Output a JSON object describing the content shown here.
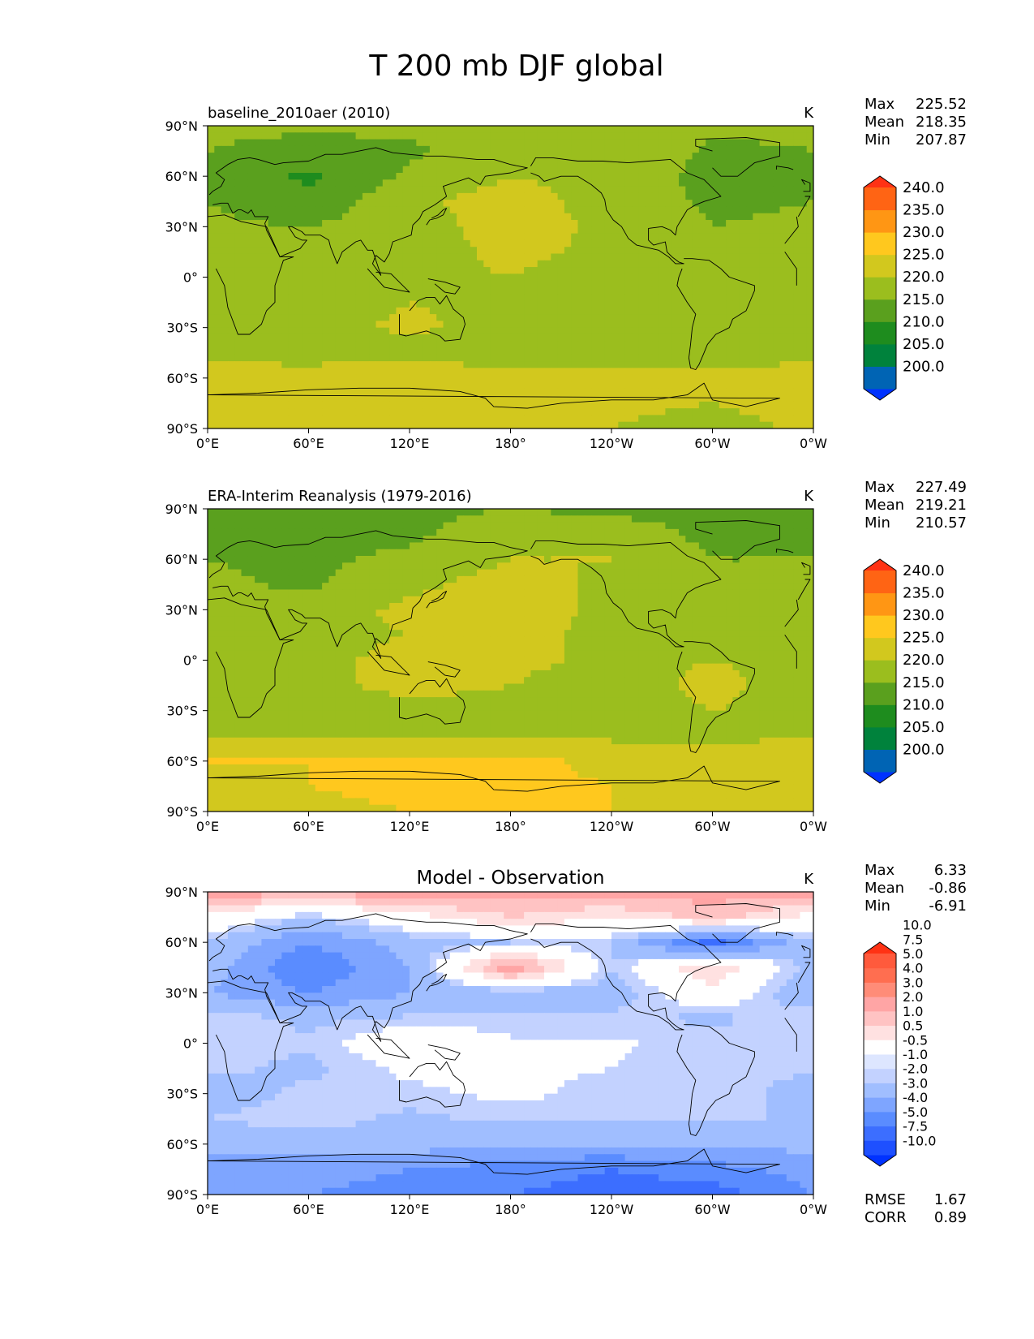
{
  "title": "T 200 mb DJF global",
  "colors": {
    "contour": [
      "#0032ff",
      "#0064b4",
      "#00823c",
      "#1e8c1e",
      "#5aa01e",
      "#9bbe1e",
      "#d2c81e",
      "#ffc81e",
      "#ff9614",
      "#ff6414",
      "#ff3214"
    ],
    "diff": [
      "#0032ff",
      "#1e50ff",
      "#3c6eff",
      "#5a8cff",
      "#7ea5ff",
      "#a0beff",
      "#c3d2ff",
      "#dde6ff",
      "#ffffff",
      "#ffe1e1",
      "#ffc3c3",
      "#ffa5a5",
      "#ff8c78",
      "#ff6e50",
      "#ff5a3c",
      "#ff3214"
    ]
  },
  "x_ticks": [
    "0°E",
    "60°E",
    "120°E",
    "180°",
    "120°W",
    "60°W",
    "0°W"
  ],
  "y_ticks": [
    "90°N",
    "60°N",
    "30°N",
    "0°",
    "30°S",
    "60°S",
    "90°S"
  ],
  "panels": [
    {
      "id": "test",
      "title_left": "baseline_2010aer (2010)",
      "title_center": "",
      "units": "K",
      "stats": [
        {
          "label": "Max",
          "value": "225.52"
        },
        {
          "label": "Mean",
          "value": "218.35"
        },
        {
          "label": "Min",
          "value": "207.87"
        }
      ],
      "colorbar_levels": [
        "200.0",
        "205.0",
        "210.0",
        "215.0",
        "220.0",
        "225.0",
        "230.0",
        "235.0",
        "240.0"
      ],
      "extra_stats": []
    },
    {
      "id": "ref",
      "title_left": "ERA-Interim Reanalysis (1979-2016)",
      "title_center": "",
      "units": "K",
      "stats": [
        {
          "label": "Max",
          "value": "227.49"
        },
        {
          "label": "Mean",
          "value": "219.21"
        },
        {
          "label": "Min",
          "value": "210.57"
        }
      ],
      "colorbar_levels": [
        "200.0",
        "205.0",
        "210.0",
        "215.0",
        "220.0",
        "225.0",
        "230.0",
        "235.0",
        "240.0"
      ],
      "extra_stats": []
    },
    {
      "id": "diff",
      "title_left": "",
      "title_center": "Model - Observation",
      "units": "K",
      "stats": [
        {
          "label": "Max",
          "value": "6.33"
        },
        {
          "label": "Mean",
          "value": "-0.86"
        },
        {
          "label": "Min",
          "value": "-6.91"
        }
      ],
      "colorbar_levels": [
        "-10.0",
        "-7.5",
        "-5.0",
        "-4.0",
        "-3.0",
        "-2.0",
        "-1.0",
        "-0.5",
        "0.5",
        "1.0",
        "2.0",
        "3.0",
        "4.0",
        "5.0",
        "7.5",
        "10.0"
      ],
      "extra_stats": [
        {
          "label": "RMSE",
          "value": "1.67"
        },
        {
          "label": "CORR",
          "value": "0.89"
        }
      ]
    }
  ],
  "chart_data": [
    {
      "type": "heatmap",
      "title": "baseline_2010aer (2010)",
      "units": "K",
      "x_range": [
        0,
        360
      ],
      "y_range": [
        -90,
        90
      ],
      "x_ticks": [
        "0°E",
        "60°E",
        "120°E",
        "180°",
        "120°W",
        "60°W",
        "0°W"
      ],
      "y_ticks": [
        "90°N",
        "60°N",
        "30°N",
        "0°",
        "30°S",
        "60°S",
        "90°S"
      ],
      "levels": [
        200,
        205,
        210,
        215,
        220,
        225,
        230,
        235,
        240
      ],
      "max": 225.52,
      "mean": 218.35,
      "min": 207.87,
      "field": {
        "lats": [
          -90,
          -75,
          -60,
          -45,
          -30,
          -15,
          0,
          15,
          30,
          45,
          60,
          75,
          90
        ],
        "lons": [
          0,
          60,
          120,
          180,
          240,
          300,
          360
        ],
        "values": [
          [
            221,
            221,
            221,
            221,
            220,
            218,
            221
          ],
          [
            222,
            222,
            222,
            222,
            221,
            220,
            222
          ],
          [
            223,
            222,
            224,
            222,
            222,
            222,
            223
          ],
          [
            218,
            218,
            218,
            217,
            216,
            217,
            218
          ],
          [
            217,
            218,
            221,
            218,
            215,
            219,
            217
          ],
          [
            218,
            218,
            220,
            219,
            218,
            218,
            218
          ],
          [
            218,
            218,
            219,
            220,
            218,
            218,
            218
          ],
          [
            218,
            217,
            218,
            221,
            219,
            218,
            218
          ],
          [
            216,
            215,
            218,
            222,
            219,
            215,
            216
          ],
          [
            215,
            211,
            219,
            222,
            218,
            214,
            215
          ],
          [
            214,
            209,
            216,
            220,
            219,
            213,
            214
          ],
          [
            215,
            213,
            214,
            219,
            220,
            214,
            215
          ],
          [
            216,
            216,
            216,
            217,
            217,
            216,
            216
          ]
        ]
      }
    },
    {
      "type": "heatmap",
      "title": "ERA-Interim Reanalysis (1979-2016)",
      "units": "K",
      "x_range": [
        0,
        360
      ],
      "y_range": [
        -90,
        90
      ],
      "x_ticks": [
        "0°E",
        "60°E",
        "120°E",
        "180°",
        "120°W",
        "60°W",
        "0°W"
      ],
      "y_ticks": [
        "90°N",
        "60°N",
        "30°N",
        "0°",
        "30°S",
        "60°S",
        "90°S"
      ],
      "levels": [
        200,
        205,
        210,
        215,
        220,
        225,
        230,
        235,
        240
      ],
      "max": 227.49,
      "mean": 219.21,
      "min": 210.57,
      "field": {
        "lats": [
          -90,
          -75,
          -60,
          -45,
          -30,
          -15,
          0,
          15,
          30,
          45,
          60,
          75,
          90
        ],
        "lons": [
          0,
          60,
          120,
          180,
          240,
          300,
          360
        ],
        "values": [
          [
            224,
            224,
            225,
            226,
            225,
            222,
            224
          ],
          [
            224,
            225,
            226,
            226,
            225,
            223,
            224
          ],
          [
            225,
            225,
            226,
            226,
            224,
            223,
            225
          ],
          [
            219,
            219,
            219,
            219,
            219,
            219,
            219
          ],
          [
            219,
            218,
            219,
            219,
            218,
            220,
            219
          ],
          [
            218,
            219,
            221,
            220,
            218,
            221,
            218
          ],
          [
            219,
            219,
            221,
            221,
            219,
            220,
            219
          ],
          [
            218,
            219,
            220,
            221,
            219,
            218,
            218
          ],
          [
            217,
            218,
            221,
            222,
            219,
            218,
            217
          ],
          [
            216,
            214,
            219,
            222,
            219,
            215,
            216
          ],
          [
            215,
            214,
            216,
            220,
            220,
            215,
            215
          ],
          [
            215,
            214,
            214,
            218,
            217,
            214,
            215
          ],
          [
            214,
            214,
            214,
            215,
            214,
            214,
            214
          ]
        ]
      }
    },
    {
      "type": "heatmap",
      "title": "Model - Observation",
      "units": "K",
      "x_range": [
        0,
        360
      ],
      "y_range": [
        -90,
        90
      ],
      "x_ticks": [
        "0°E",
        "60°E",
        "120°E",
        "180°",
        "120°W",
        "60°W",
        "0°W"
      ],
      "y_ticks": [
        "90°N",
        "60°N",
        "30°N",
        "0°",
        "30°S",
        "60°S",
        "90°S"
      ],
      "levels": [
        -10.0,
        -7.5,
        -5.0,
        -4.0,
        -3.0,
        -2.0,
        -1.0,
        -0.5,
        0.5,
        1.0,
        2.0,
        3.0,
        4.0,
        5.0,
        7.5,
        10.0
      ],
      "max": 6.33,
      "mean": -0.86,
      "min": -6.91,
      "rmse": 1.67,
      "corr": 0.89,
      "field": {
        "lats": [
          -90,
          -75,
          -60,
          -45,
          -30,
          -15,
          0,
          15,
          30,
          45,
          60,
          75,
          90
        ],
        "lons": [
          0,
          60,
          120,
          180,
          240,
          300,
          360
        ],
        "values": [
          [
            -3.0,
            -3.0,
            -3.5,
            -4.0,
            -4.5,
            -4.5,
            -3.0
          ],
          [
            -2.5,
            -2.5,
            -3.0,
            -3.5,
            -4.0,
            -3.5,
            -2.5
          ],
          [
            -1.8,
            -1.5,
            -1.5,
            -2.0,
            -2.0,
            -1.5,
            -1.8
          ],
          [
            -1.0,
            -0.6,
            -1.2,
            -0.8,
            -0.8,
            -1.0,
            -1.0
          ],
          [
            -1.5,
            -0.8,
            -0.7,
            -0.3,
            -0.8,
            -0.5,
            -1.5
          ],
          [
            -0.8,
            -1.2,
            -0.3,
            -0.3,
            -0.5,
            -1.0,
            -0.8
          ],
          [
            -0.6,
            -0.9,
            0.4,
            -0.4,
            -0.4,
            -0.8,
            -0.6
          ],
          [
            -0.5,
            -1.2,
            -0.9,
            -0.8,
            -0.8,
            -1.2,
            -0.5
          ],
          [
            -2.0,
            -3.0,
            -2.0,
            -1.5,
            -1.5,
            0.5,
            -2.0
          ],
          [
            -1.5,
            -4.0,
            -2.0,
            4.0,
            -1.0,
            2.0,
            -1.5
          ],
          [
            -1.0,
            -3.0,
            -1.5,
            -1.0,
            -1.0,
            -4.5,
            -1.0
          ],
          [
            0.5,
            -1.0,
            0.5,
            2.0,
            1.0,
            2.5,
            0.5
          ],
          [
            3.5,
            3.5,
            3.5,
            3.5,
            3.5,
            3.5,
            3.5
          ]
        ]
      }
    }
  ]
}
